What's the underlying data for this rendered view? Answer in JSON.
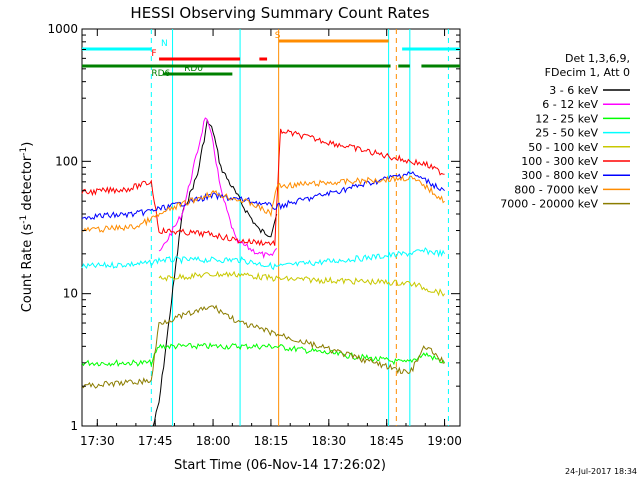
{
  "chart_data": {
    "type": "line",
    "title": "HESSI Observing Summary Count Rates",
    "xlabel": "Start Time (06-Nov-14 17:26:02)",
    "ylabel_main": "Count Rate (s",
    "ylabel_sup1": "-1",
    "ylabel_mid": " detector",
    "ylabel_sup2": "-1",
    "ylabel_end": ")",
    "y_scale": "log",
    "ylim": [
      1,
      1000
    ],
    "xlim": [
      "17:26:02",
      "19:04:00"
    ],
    "x_ticks": [
      "17:30",
      "17:45",
      "18:00",
      "18:15",
      "18:30",
      "18:45",
      "19:00"
    ],
    "y_ticks": [
      "1",
      "10",
      "100",
      "1000"
    ],
    "date_stamp": "24-Jul-2017 18:34",
    "legend_header": [
      "Det 1,3,6,9,",
      "FDecim 1, Att 0"
    ],
    "legend_position": "right",
    "series": [
      {
        "name": "3 - 6 keV",
        "color": "#000000",
        "points": [
          [
            "17:44:30",
            1
          ],
          [
            "17:46:00",
            1.5
          ],
          [
            "17:52:00",
            40
          ],
          [
            "17:56:00",
            80
          ],
          [
            "17:58:30",
            200
          ],
          [
            "18:00:00",
            170
          ],
          [
            "18:02:00",
            90
          ],
          [
            "18:08:00",
            45
          ],
          [
            "18:12:00",
            30
          ],
          [
            "18:15:00",
            28
          ],
          [
            "18:16:30",
            40
          ]
        ]
      },
      {
        "name": "6 - 12 keV",
        "color": "#ff00ff",
        "points": [
          [
            "17:46:00",
            20
          ],
          [
            "17:52:00",
            40
          ],
          [
            "17:56:00",
            120
          ],
          [
            "17:58:00",
            220
          ],
          [
            "18:00:00",
            140
          ],
          [
            "18:02:00",
            60
          ],
          [
            "18:06:00",
            25
          ],
          [
            "18:12:00",
            20
          ],
          [
            "18:15:00",
            19
          ],
          [
            "18:16:30",
            22
          ]
        ]
      },
      {
        "name": "12 - 25 keV",
        "color": "#00ff00",
        "points": [
          [
            "17:26:02",
            3
          ],
          [
            "17:44:00",
            3
          ],
          [
            "17:46:00",
            4
          ],
          [
            "18:00:00",
            4
          ],
          [
            "18:16:00",
            4
          ],
          [
            "18:50:00",
            3
          ],
          [
            "18:55:00",
            3.5
          ],
          [
            "19:00:00",
            3
          ]
        ]
      },
      {
        "name": "25 - 50 keV",
        "color": "#00ffff",
        "points": [
          [
            "17:26:02",
            16
          ],
          [
            "17:44:00",
            17
          ],
          [
            "17:46:00",
            18
          ],
          [
            "18:07:00",
            18
          ],
          [
            "18:16:00",
            16
          ],
          [
            "18:50:00",
            20
          ],
          [
            "18:55:00",
            21
          ],
          [
            "19:00:00",
            20
          ]
        ]
      },
      {
        "name": "50 - 100 keV",
        "color": "#c8c800",
        "points": [
          [
            "17:46:00",
            13
          ],
          [
            "18:00:00",
            14
          ],
          [
            "18:07:00",
            14
          ],
          [
            "18:16:00",
            13
          ],
          [
            "18:51:00",
            12
          ],
          [
            "18:55:00",
            11
          ],
          [
            "19:00:00",
            10
          ]
        ]
      },
      {
        "name": "100 - 300 keV",
        "color": "#ff0000",
        "points": [
          [
            "17:26:02",
            58
          ],
          [
            "17:38:00",
            62
          ],
          [
            "17:44:00",
            70
          ],
          [
            "17:46:00",
            30
          ],
          [
            "18:00:00",
            28
          ],
          [
            "18:07:00",
            25
          ],
          [
            "18:16:00",
            24
          ],
          [
            "18:17:30",
            170
          ],
          [
            "18:51:00",
            100
          ],
          [
            "18:55:00",
            95
          ],
          [
            "19:00:00",
            80
          ]
        ]
      },
      {
        "name": "300 - 800 keV",
        "color": "#0000ff",
        "points": [
          [
            "17:26:02",
            38
          ],
          [
            "17:40:00",
            40
          ],
          [
            "17:48:00",
            45
          ],
          [
            "18:00:00",
            55
          ],
          [
            "18:10:00",
            50
          ],
          [
            "18:16:00",
            45
          ],
          [
            "18:51:00",
            82
          ],
          [
            "18:55:00",
            72
          ],
          [
            "19:00:00",
            60
          ]
        ]
      },
      {
        "name": "800 - 7000 keV",
        "color": "#ff8c00",
        "points": [
          [
            "17:26:02",
            30
          ],
          [
            "17:40:00",
            32
          ],
          [
            "17:50:00",
            45
          ],
          [
            "18:00:00",
            58
          ],
          [
            "18:10:00",
            48
          ],
          [
            "18:15:00",
            40
          ],
          [
            "18:16:30",
            65
          ],
          [
            "18:51:00",
            75
          ],
          [
            "18:55:00",
            65
          ],
          [
            "19:00:00",
            50
          ]
        ]
      },
      {
        "name": "7000 - 20000 keV",
        "color": "#8b7d00",
        "points": [
          [
            "17:26:02",
            2
          ],
          [
            "17:44:00",
            2.2
          ],
          [
            "17:46:00",
            6
          ],
          [
            "18:00:00",
            8
          ],
          [
            "18:07:00",
            6
          ],
          [
            "18:16:00",
            5
          ],
          [
            "18:51:00",
            2.5
          ],
          [
            "18:55:00",
            4
          ],
          [
            "19:00:00",
            3
          ]
        ]
      }
    ],
    "flag_bars": [
      {
        "label": "N",
        "color": "#00ffff",
        "segments": [
          [
            "17:26:02",
            "17:44:00"
          ],
          [
            "18:49:00",
            "19:04:00"
          ]
        ]
      },
      {
        "label": "S",
        "color": "#ff8c00",
        "segments": [
          [
            "18:17:00",
            "18:45:30"
          ]
        ]
      },
      {
        "label": "F",
        "color": "#ff0000",
        "segments": [
          [
            "17:46:00",
            "18:07:00"
          ],
          [
            "18:12:00",
            "18:14:00"
          ]
        ]
      },
      {
        "label": "",
        "color": "#008000",
        "segments": [
          [
            "17:26:02",
            "18:46:00"
          ],
          [
            "18:48:00",
            "18:51:00"
          ],
          [
            "18:54:00",
            "19:04:00"
          ]
        ]
      },
      {
        "label": "RD0",
        "color": "#008000",
        "segments": [
          [
            "17:47:00",
            "18:05:00"
          ]
        ]
      },
      {
        "label": "RD6",
        "color": "#008000",
        "segments": []
      }
    ],
    "vertical_markers": [
      {
        "time": "17:44:00",
        "color": "#00ffff",
        "style": "dashed"
      },
      {
        "time": "17:49:30",
        "color": "#00ffff",
        "style": "solid"
      },
      {
        "time": "18:07:00",
        "color": "#00ffff",
        "style": "solid"
      },
      {
        "time": "18:17:00",
        "color": "#ff8c00",
        "style": "solid"
      },
      {
        "time": "18:45:30",
        "color": "#00ffff",
        "style": "solid"
      },
      {
        "time": "18:47:30",
        "color": "#ff8c00",
        "style": "dashed"
      },
      {
        "time": "18:51:00",
        "color": "#00ffff",
        "style": "solid"
      },
      {
        "time": "19:01:00",
        "color": "#00ffff",
        "style": "dashed"
      }
    ]
  }
}
